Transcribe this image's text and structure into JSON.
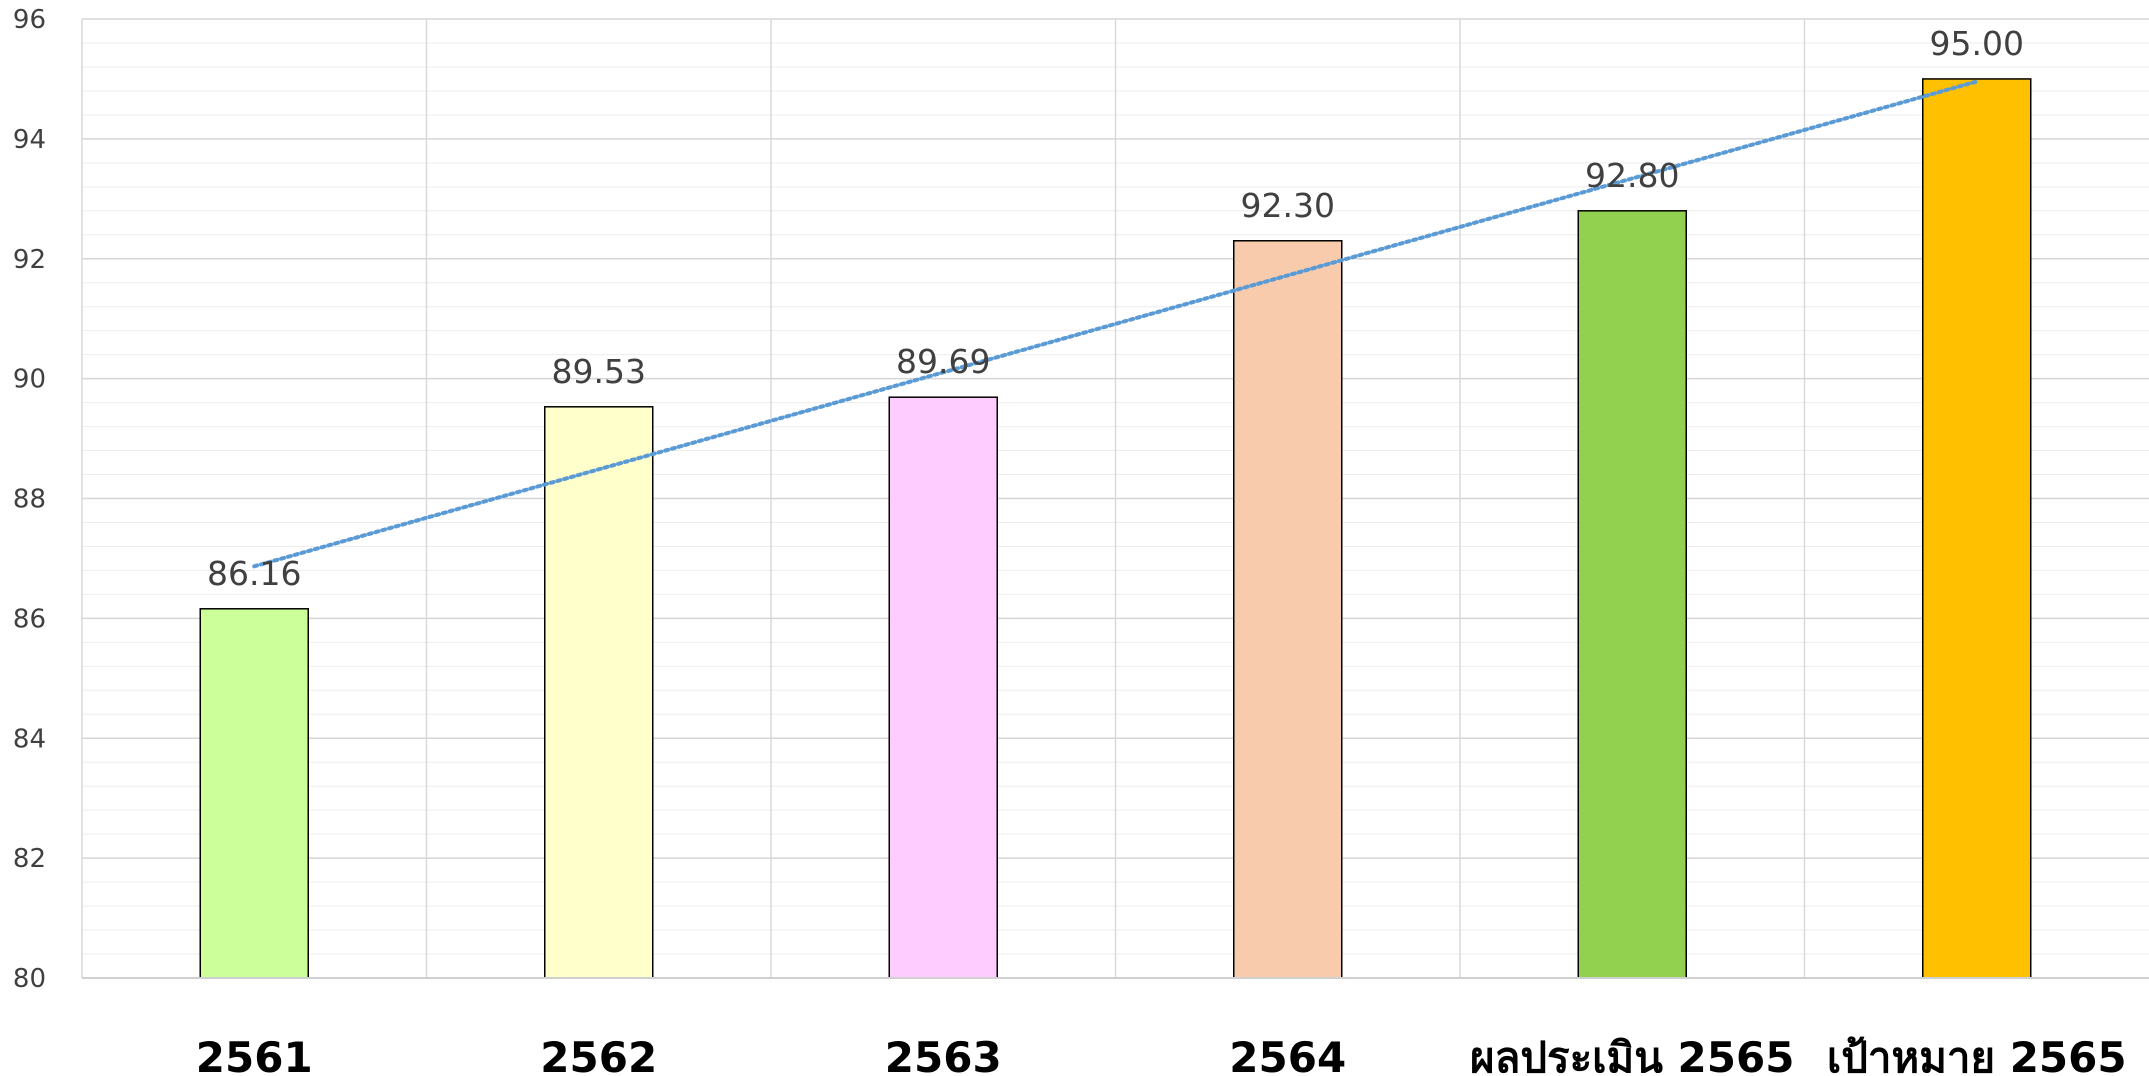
{
  "chart_data": {
    "type": "bar",
    "title": "",
    "xlabel": "",
    "ylabel": "",
    "categories": [
      "2561",
      "2562",
      "2563",
      "2564",
      "ผลประเมิน 2565",
      "เป้าหมาย 2565"
    ],
    "values": [
      86.16,
      89.53,
      89.69,
      92.3,
      92.8,
      95.0
    ],
    "data_labels": [
      "86.16",
      "89.53",
      "89.69",
      "92.30",
      "92.80",
      "95.00"
    ],
    "bar_colors": [
      "#ccff99",
      "#ffffcc",
      "#ffccff",
      "#f8cbad",
      "#92d050",
      "#ffc000"
    ],
    "ylim": [
      80,
      96
    ],
    "yticks": [
      80,
      82,
      84,
      86,
      88,
      90,
      92,
      94,
      96
    ],
    "ytick_labels": [
      "80",
      "82",
      "84",
      "86",
      "88",
      "90",
      "92",
      "94",
      "96"
    ],
    "grid": true,
    "minor_grid": true,
    "legend": "none",
    "trendline": {
      "type": "linear",
      "style": "dotted",
      "color": "#5b9bd5"
    }
  }
}
